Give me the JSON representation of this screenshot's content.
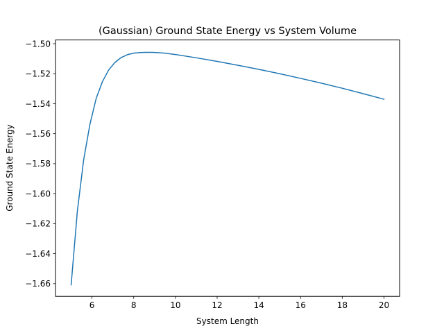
{
  "chart_data": {
    "type": "line",
    "title": "(Gaussian) Ground State Energy vs System Volume",
    "xlabel": "System Length",
    "ylabel": "Ground State Energy",
    "xlim": [
      4.25,
      20.75
    ],
    "ylim": [
      -1.6685,
      -1.4975
    ],
    "xticks": [
      6,
      8,
      10,
      12,
      14,
      16,
      18,
      20
    ],
    "xtick_labels": [
      "6",
      "8",
      "10",
      "12",
      "14",
      "16",
      "18",
      "20"
    ],
    "yticks": [
      -1.66,
      -1.64,
      -1.62,
      -1.6,
      -1.58,
      -1.56,
      -1.54,
      -1.52,
      -1.5
    ],
    "ytick_labels": [
      "−1.66",
      "−1.64",
      "−1.62",
      "−1.60",
      "−1.58",
      "−1.56",
      "−1.54",
      "−1.52",
      "−1.50"
    ],
    "grid": false,
    "series": [
      {
        "color": "#1f77b4",
        "x": [
          5.0,
          5.3,
          5.6,
          5.9,
          6.2,
          6.5,
          6.8,
          7.1,
          7.4,
          7.7,
          8.0,
          8.3,
          8.6,
          8.9,
          9.2,
          9.5,
          10.0,
          11.0,
          12.0,
          13.0,
          14.0,
          15.0,
          16.0,
          17.0,
          18.0,
          19.0,
          20.0
        ],
        "y": [
          -1.6608,
          -1.6114,
          -1.5775,
          -1.5538,
          -1.5365,
          -1.5253,
          -1.5175,
          -1.5125,
          -1.5092,
          -1.5073,
          -1.5063,
          -1.5059,
          -1.5058,
          -1.5058,
          -1.506,
          -1.5063,
          -1.5072,
          -1.5094,
          -1.5118,
          -1.5144,
          -1.5171,
          -1.52,
          -1.5231,
          -1.5263,
          -1.5297,
          -1.5333,
          -1.537
        ]
      }
    ]
  }
}
